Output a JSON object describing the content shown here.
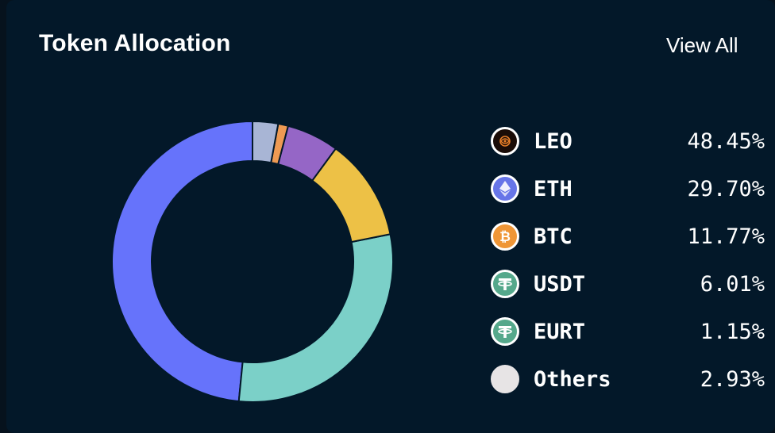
{
  "header": {
    "title": "Token Allocation",
    "view_all_label": "View All"
  },
  "colors": {
    "background": "#031829",
    "stroke": "#031829"
  },
  "chart_data": {
    "type": "pie",
    "donut": true,
    "categories": [
      "LEO",
      "ETH",
      "BTC",
      "USDT",
      "EURT",
      "Others"
    ],
    "values": [
      48.45,
      29.7,
      11.77,
      6.01,
      1.15,
      2.93
    ],
    "value_labels": [
      "48.45%",
      "29.70%",
      "11.77%",
      "6.01%",
      "1.15%",
      "2.93%"
    ],
    "colors": [
      "#6673fb",
      "#7bd0c8",
      "#edc146",
      "#9566c6",
      "#ee9a53",
      "#a8b5d5"
    ],
    "start_angle_deg": 90,
    "direction": "counterclockwise",
    "legend": "right"
  },
  "legend_icons": [
    {
      "name": "leo-icon",
      "bg": "#1a0c07",
      "glyph_color": "#e77e28"
    },
    {
      "name": "eth-icon",
      "bg": "#6775e8",
      "glyph_color": "#ffffff"
    },
    {
      "name": "btc-icon",
      "bg": "#ef9637",
      "glyph_color": "#ffffff"
    },
    {
      "name": "usdt-icon",
      "bg": "#55a88b",
      "glyph_color": "#ffffff"
    },
    {
      "name": "eurt-icon",
      "bg": "#55a88b",
      "glyph_color": "#ffffff"
    },
    {
      "name": "others-icon",
      "bg": "#e7e4e5",
      "glyph_color": "#e7e4e5"
    }
  ]
}
